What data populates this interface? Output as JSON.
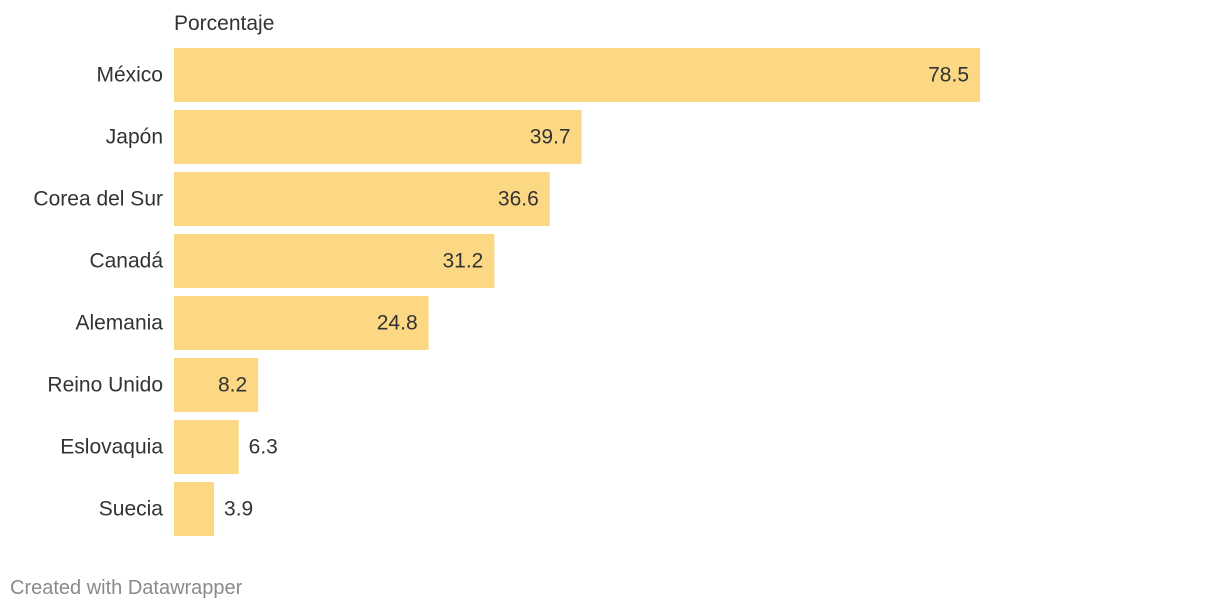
{
  "chart_data": {
    "type": "bar",
    "orientation": "horizontal",
    "column_header": "Porcentaje",
    "categories": [
      "México",
      "Japón",
      "Corea del Sur",
      "Canadá",
      "Alemania",
      "Reino Unido",
      "Eslovaquia",
      "Suecia"
    ],
    "values": [
      78.5,
      39.7,
      36.6,
      31.2,
      24.8,
      8.2,
      6.3,
      3.9
    ],
    "value_labels": [
      "78.5",
      "39.7",
      "36.6",
      "31.2",
      "24.8",
      "8.2",
      "6.3",
      "3.9"
    ],
    "xlim": [
      0,
      100
    ],
    "grid": false,
    "colors": {
      "bar": "#fdd884",
      "label_text": "#333333",
      "credit_text": "#8a8a8a"
    }
  },
  "footer": {
    "credit": "Created with Datawrapper"
  }
}
